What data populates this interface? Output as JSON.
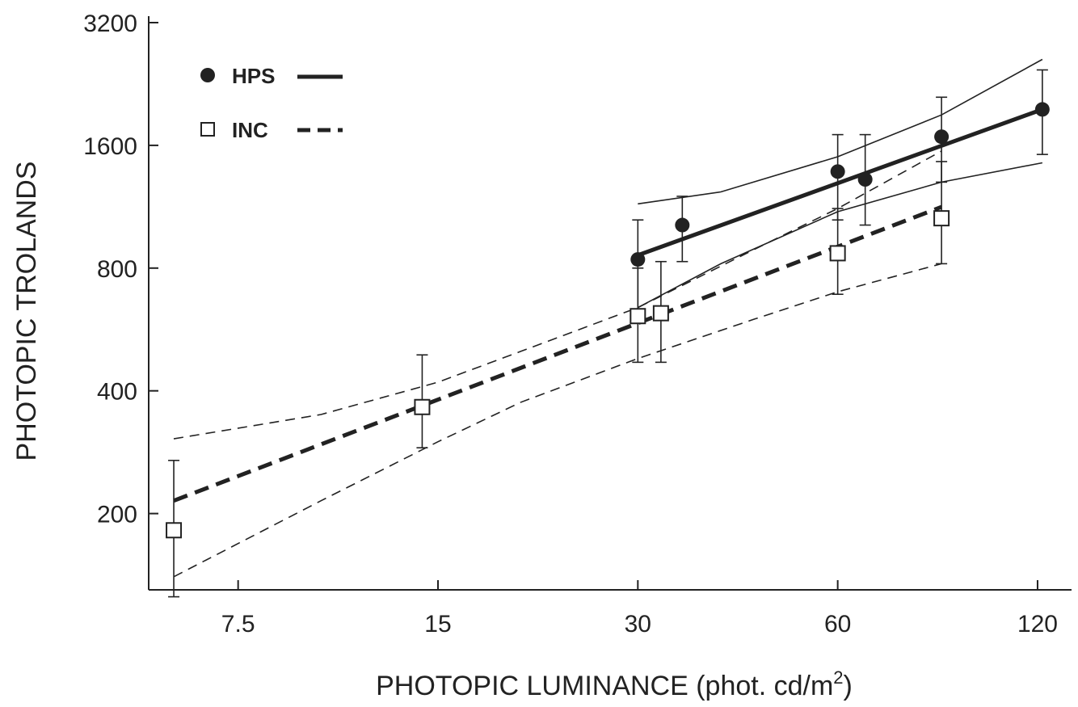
{
  "chart_data": {
    "type": "line",
    "title": "",
    "xlabel": "PHOTOPIC LUMINANCE (phot. cd/m",
    "xlabel_sup": "2",
    "xlabel_close": ")",
    "ylabel": "PHOTOPIC TROLANDS",
    "x_scale": "log2",
    "y_scale": "log2",
    "xlim": [
      5.5,
      135
    ],
    "ylim": [
      130,
      3200
    ],
    "x_ticks": [
      7.5,
      15,
      30,
      60,
      120
    ],
    "x_tick_labels": [
      "7.5",
      "15",
      "30",
      "60",
      "120"
    ],
    "y_ticks": [
      200,
      400,
      800,
      1600,
      3200
    ],
    "y_tick_labels": [
      "200",
      "400",
      "800",
      "1600",
      "3200"
    ],
    "legend_position": "top-left",
    "grid": false,
    "colors": {
      "ink": "#222222",
      "background": "#ffffff",
      "marker_fill_open": "#ffffff"
    },
    "series": [
      {
        "name": "HPS",
        "marker": "filled-circle",
        "line_style": "solid",
        "points": [
          {
            "x": 30,
            "y": 840,
            "y_low": 600,
            "y_high": 1050
          },
          {
            "x": 35,
            "y": 1020,
            "y_low": 830,
            "y_high": 1200
          },
          {
            "x": 60,
            "y": 1380,
            "y_low": 1050,
            "y_high": 1700
          },
          {
            "x": 66,
            "y": 1320,
            "y_low": 1020,
            "y_high": 1700
          },
          {
            "x": 86,
            "y": 1680,
            "y_low": 1300,
            "y_high": 2100
          },
          {
            "x": 122,
            "y": 1960,
            "y_low": 1520,
            "y_high": 2450
          }
        ],
        "fit": [
          {
            "x": 30,
            "y": 860
          },
          {
            "x": 122,
            "y": 1960
          }
        ],
        "band_upper": [
          {
            "x": 30,
            "y": 1150
          },
          {
            "x": 40,
            "y": 1230
          },
          {
            "x": 60,
            "y": 1500
          },
          {
            "x": 86,
            "y": 1900
          },
          {
            "x": 122,
            "y": 2600
          }
        ],
        "band_lower": [
          {
            "x": 30,
            "y": 640
          },
          {
            "x": 40,
            "y": 820
          },
          {
            "x": 60,
            "y": 1100
          },
          {
            "x": 86,
            "y": 1300
          },
          {
            "x": 122,
            "y": 1450
          }
        ]
      },
      {
        "name": "INC",
        "marker": "open-square",
        "line_style": "dashed",
        "points": [
          {
            "x": 6,
            "y": 182,
            "y_low": 125,
            "y_high": 270
          },
          {
            "x": 14.2,
            "y": 365,
            "y_low": 290,
            "y_high": 490
          },
          {
            "x": 30,
            "y": 610,
            "y_low": 470,
            "y_high": 800
          },
          {
            "x": 32.5,
            "y": 620,
            "y_low": 470,
            "y_high": 830
          },
          {
            "x": 60,
            "y": 870,
            "y_low": 690,
            "y_high": 1120
          },
          {
            "x": 86,
            "y": 1060,
            "y_low": 820,
            "y_high": 1460
          }
        ],
        "fit": [
          {
            "x": 6,
            "y": 215
          },
          {
            "x": 86,
            "y": 1130
          }
        ],
        "band_upper": [
          {
            "x": 6,
            "y": 305
          },
          {
            "x": 10,
            "y": 350
          },
          {
            "x": 15,
            "y": 420
          },
          {
            "x": 20,
            "y": 500
          },
          {
            "x": 30,
            "y": 640
          },
          {
            "x": 45,
            "y": 890
          },
          {
            "x": 60,
            "y": 1120
          },
          {
            "x": 86,
            "y": 1550
          }
        ],
        "band_lower": [
          {
            "x": 6,
            "y": 140
          },
          {
            "x": 10,
            "y": 215
          },
          {
            "x": 15,
            "y": 300
          },
          {
            "x": 20,
            "y": 375
          },
          {
            "x": 30,
            "y": 480
          },
          {
            "x": 45,
            "y": 600
          },
          {
            "x": 60,
            "y": 700
          },
          {
            "x": 86,
            "y": 820
          }
        ]
      }
    ]
  }
}
